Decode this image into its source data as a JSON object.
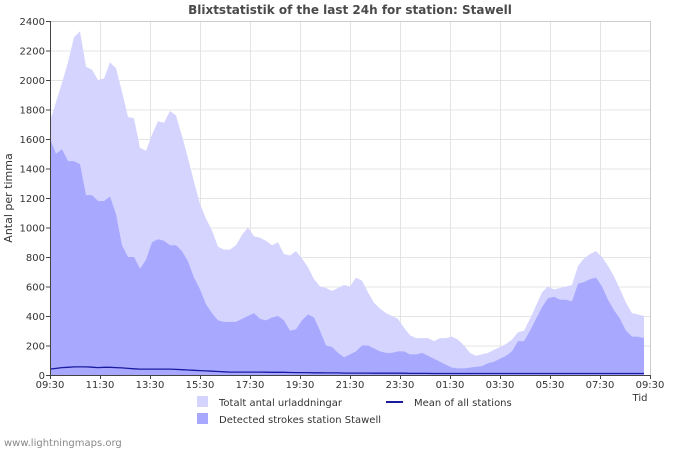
{
  "chart_data": {
    "type": "area",
    "title": "Blixtstatistik of the last 24h for station: Stawell",
    "ylabel": "Antal per timma",
    "xlabel": "Tid",
    "ylim": [
      0,
      2400
    ],
    "yticks": [
      0,
      200,
      400,
      600,
      800,
      1000,
      1200,
      1400,
      1600,
      1800,
      2000,
      2200,
      2400
    ],
    "xticks": [
      "09:30",
      "11:30",
      "13:30",
      "15:30",
      "17:30",
      "19:30",
      "21:30",
      "23:30",
      "01:30",
      "03:30",
      "05:30",
      "07:30",
      "09:30"
    ],
    "series": [
      {
        "name": "Totalt antal urladdningar",
        "color": "#d4d4ff",
        "values": [
          1720,
          1850,
          1980,
          2120,
          2290,
          2330,
          2090,
          2070,
          2000,
          2010,
          2120,
          2080,
          1920,
          1750,
          1740,
          1540,
          1520,
          1630,
          1720,
          1710,
          1790,
          1760,
          1620,
          1470,
          1310,
          1160,
          1060,
          980,
          870,
          850,
          850,
          880,
          950,
          1000,
          940,
          930,
          910,
          880,
          900,
          820,
          810,
          840,
          790,
          730,
          650,
          600,
          590,
          570,
          590,
          610,
          600,
          660,
          640,
          560,
          490,
          450,
          420,
          400,
          380,
          320,
          270,
          250,
          250,
          250,
          230,
          250,
          250,
          260,
          240,
          200,
          150,
          130,
          140,
          150,
          170,
          190,
          210,
          240,
          290,
          300,
          380,
          470,
          560,
          600,
          580,
          590,
          600,
          610,
          740,
          790,
          820,
          840,
          800,
          740,
          670,
          580,
          490,
          420,
          410,
          400
        ]
      },
      {
        "name": "Detected strokes station Stawell",
        "color": "#a8a8ff",
        "values": [
          1600,
          1500,
          1530,
          1450,
          1450,
          1430,
          1220,
          1220,
          1180,
          1180,
          1210,
          1090,
          880,
          800,
          800,
          720,
          780,
          900,
          920,
          910,
          880,
          880,
          840,
          770,
          660,
          580,
          480,
          420,
          370,
          360,
          360,
          360,
          380,
          400,
          420,
          380,
          370,
          390,
          400,
          370,
          300,
          310,
          370,
          410,
          390,
          300,
          200,
          190,
          150,
          120,
          140,
          160,
          200,
          200,
          180,
          160,
          150,
          150,
          160,
          160,
          140,
          140,
          150,
          130,
          110,
          90,
          70,
          50,
          45,
          45,
          50,
          55,
          60,
          80,
          90,
          110,
          130,
          160,
          230,
          230,
          300,
          380,
          460,
          520,
          530,
          510,
          510,
          500,
          620,
          630,
          650,
          660,
          600,
          510,
          440,
          380,
          300,
          260,
          260,
          250
        ]
      },
      {
        "name": "Mean of all stations",
        "color": "#1a1aa0",
        "values": [
          40,
          45,
          50,
          52,
          55,
          55,
          55,
          53,
          50,
          52,
          52,
          50,
          48,
          45,
          42,
          40,
          40,
          40,
          40,
          40,
          40,
          38,
          36,
          34,
          32,
          30,
          28,
          26,
          24,
          22,
          20,
          20,
          20,
          20,
          20,
          20,
          19,
          18,
          18,
          18,
          17,
          16,
          16,
          16,
          15,
          15,
          14,
          14,
          14,
          13,
          13,
          13,
          13,
          13,
          12,
          12,
          12,
          12,
          12,
          12,
          11,
          11,
          11,
          11,
          10,
          10,
          10,
          10,
          10,
          10,
          10,
          10,
          10,
          10,
          10,
          10,
          10,
          10,
          10,
          10,
          10,
          10,
          10,
          10,
          10,
          10,
          10,
          10,
          10,
          10,
          10,
          10,
          10,
          10,
          10,
          10,
          10,
          10,
          10,
          10
        ]
      }
    ],
    "legend_position": "bottom-center"
  },
  "footer": {
    "source": "www.lightningmaps.org"
  }
}
